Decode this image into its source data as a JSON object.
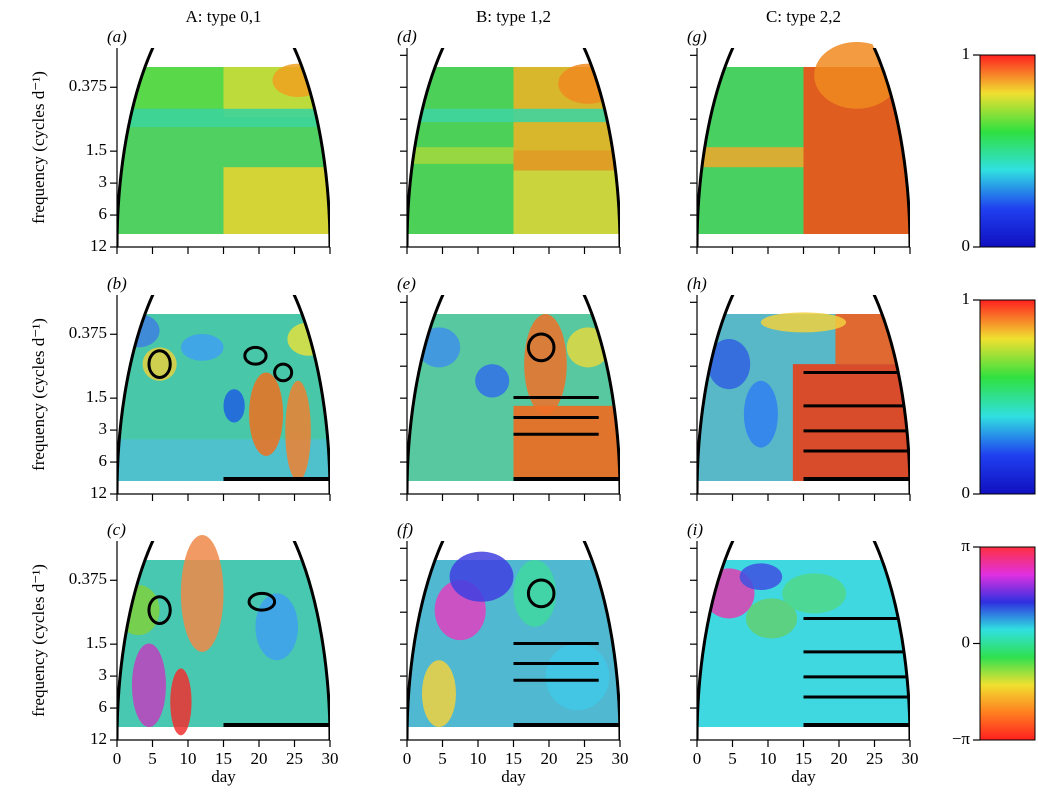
{
  "chart_data": [
    {
      "type": "heatmap",
      "title": "A: type 0,1",
      "panel_label": "(a)",
      "ylabel": "frequency (cycles d⁻¹)",
      "xlim": [
        0,
        30
      ],
      "xticks": [
        0,
        5,
        10,
        15,
        20,
        25,
        30
      ],
      "xtick_labels": false,
      "ylim": [
        12,
        0.16
      ],
      "yticks": [
        0.375,
        1.5,
        3,
        6,
        12
      ],
      "ytick_labels": true,
      "log_y": true
    },
    {
      "type": "heatmap",
      "title": "B: type 1,2",
      "panel_label": "(d)",
      "xlim": [
        0,
        30
      ],
      "xticks": [
        0,
        5,
        10,
        15,
        20,
        25,
        30
      ],
      "xtick_labels": false,
      "ylim": [
        12,
        0.16
      ],
      "yticks": [
        0.1875,
        0.375,
        0.75,
        1.5,
        3,
        6,
        12
      ],
      "ytick_labels": false,
      "log_y": true
    },
    {
      "type": "heatmap",
      "title": "C: type 2,2",
      "panel_label": "(g)",
      "xlim": [
        0,
        30
      ],
      "xticks": [
        0,
        5,
        10,
        15,
        20,
        25,
        30
      ],
      "xtick_labels": false,
      "ylim": [
        12,
        0.16
      ],
      "yticks": [
        0.1875,
        0.375,
        0.75,
        1.5,
        3,
        6,
        12
      ],
      "ytick_labels": false,
      "log_y": true
    },
    {
      "type": "heatmap",
      "panel_label": "(b)",
      "ylabel": "frequency (cycles d⁻¹)",
      "xlim": [
        0,
        30
      ],
      "xticks": [
        0,
        5,
        10,
        15,
        20,
        25,
        30
      ],
      "xtick_labels": false,
      "ylim": [
        12,
        0.16
      ],
      "yticks": [
        0.375,
        1.5,
        3,
        6,
        12
      ],
      "ytick_labels": true,
      "log_y": true
    },
    {
      "type": "heatmap",
      "panel_label": "(e)",
      "xlim": [
        0,
        30
      ],
      "xticks": [
        0,
        5,
        10,
        15,
        20,
        25,
        30
      ],
      "xtick_labels": false,
      "ylim": [
        12,
        0.16
      ],
      "yticks": [
        0.1875,
        0.375,
        0.75,
        1.5,
        3,
        6,
        12
      ],
      "ytick_labels": false,
      "log_y": true
    },
    {
      "type": "heatmap",
      "panel_label": "(h)",
      "xlim": [
        0,
        30
      ],
      "xticks": [
        0,
        5,
        10,
        15,
        20,
        25,
        30
      ],
      "xtick_labels": false,
      "ylim": [
        12,
        0.16
      ],
      "yticks": [
        0.1875,
        0.375,
        0.75,
        1.5,
        3,
        6,
        12
      ],
      "ytick_labels": false,
      "log_y": true
    },
    {
      "type": "heatmap",
      "panel_label": "(c)",
      "ylabel": "frequency (cycles d⁻¹)",
      "xlabel": "day",
      "xlim": [
        0,
        30
      ],
      "xticks": [
        0,
        5,
        10,
        15,
        20,
        25,
        30
      ],
      "xtick_labels": true,
      "ylim": [
        12,
        0.16
      ],
      "yticks": [
        0.375,
        1.5,
        3,
        6,
        12
      ],
      "ytick_labels": true,
      "log_y": true
    },
    {
      "type": "heatmap",
      "panel_label": "(f)",
      "xlabel": "day",
      "xlim": [
        0,
        30
      ],
      "xticks": [
        0,
        5,
        10,
        15,
        20,
        25,
        30
      ],
      "xtick_labels": true,
      "ylim": [
        12,
        0.16
      ],
      "yticks": [
        0.1875,
        0.375,
        0.75,
        1.5,
        3,
        6,
        12
      ],
      "ytick_labels": false,
      "log_y": true
    },
    {
      "type": "heatmap",
      "panel_label": "(i)",
      "xlabel": "day",
      "xlim": [
        0,
        30
      ],
      "xticks": [
        0,
        5,
        10,
        15,
        20,
        25,
        30
      ],
      "xtick_labels": true,
      "ylim": [
        12,
        0.16
      ],
      "yticks": [
        0.1875,
        0.375,
        0.75,
        1.5,
        3,
        6,
        12
      ],
      "ytick_labels": false,
      "log_y": true
    },
    {
      "type": "colorbar",
      "ylim": [
        0,
        1
      ],
      "yticks": [
        0,
        1
      ]
    },
    {
      "type": "colorbar",
      "ylim": [
        0,
        1
      ],
      "yticks": [
        0,
        1
      ]
    },
    {
      "type": "colorbar",
      "ylim": [
        -3.1416,
        3.1416
      ],
      "yticks": [
        {
          "value": 3.1416,
          "label": "π"
        },
        0,
        {
          "value": -3.1416,
          "label": "−π"
        }
      ]
    }
  ]
}
